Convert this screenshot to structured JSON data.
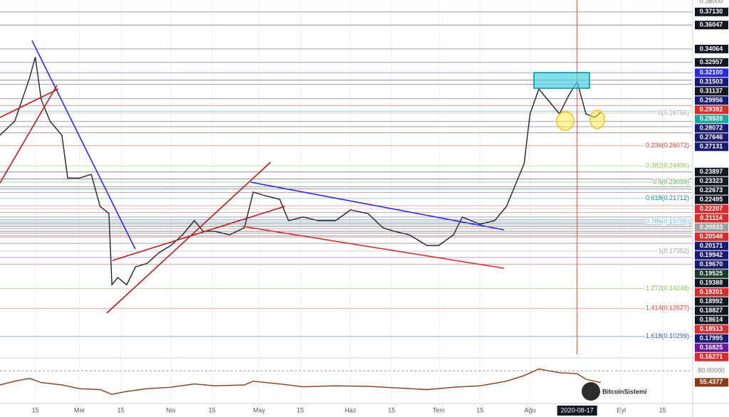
{
  "chart_data": [
    {
      "type": "line",
      "x": [
        "2020-02-03",
        "2020-02-08",
        "2020-02-13",
        "2020-02-15",
        "2020-02-17",
        "2020-02-20",
        "2020-02-24",
        "2020-02-26",
        "2020-03-01",
        "2020-03-05",
        "2020-03-08",
        "2020-03-11",
        "2020-03-12",
        "2020-03-14",
        "2020-03-17",
        "2020-03-20",
        "2020-03-24",
        "2020-03-28",
        "2020-04-01",
        "2020-04-05",
        "2020-04-09",
        "2020-04-12",
        "2020-04-16",
        "2020-04-21",
        "2020-04-26",
        "2020-04-29",
        "2020-05-03",
        "2020-05-08",
        "2020-05-11",
        "2020-05-16",
        "2020-05-21",
        "2020-05-27",
        "2020-06-01",
        "2020-06-07",
        "2020-06-12",
        "2020-06-16",
        "2020-06-21",
        "2020-06-27",
        "2020-07-01",
        "2020-07-06",
        "2020-07-09",
        "2020-07-15",
        "2020-07-20",
        "2020-07-24",
        "2020-07-27",
        "2020-07-30",
        "2020-08-01",
        "2020-08-04",
        "2020-08-07",
        "2020-08-11",
        "2020-08-14",
        "2020-08-17",
        "2020-08-20",
        "2020-08-23",
        "2020-08-25"
      ],
      "series": [
        {
          "color": "#222222",
          "values": [
            0.2694,
            0.281,
            0.3164,
            0.334,
            0.2988,
            0.281,
            0.2694,
            0.234,
            0.234,
            0.237,
            0.2105,
            0.2046,
            0.1458,
            0.1517,
            0.1458,
            0.1605,
            0.1635,
            0.1723,
            0.1782,
            0.187,
            0.1988,
            0.1899,
            0.1899,
            0.187,
            0.1929,
            0.2223,
            0.2194,
            0.2164,
            0.1988,
            0.2017,
            0.1988,
            0.1988,
            0.2076,
            0.2046,
            0.1929,
            0.1899,
            0.187,
            0.1782,
            0.1782,
            0.187,
            0.2017,
            0.1958,
            0.1988,
            0.2105,
            0.2282,
            0.2458,
            0.287,
            0.3076,
            0.2988,
            0.287,
            0.3017,
            0.3135,
            0.287,
            0.2841,
            0.2882
          ]
        }
      ],
      "xlim": [
        "2020-02-03",
        "2020-09-25"
      ],
      "xticks": [
        {
          "value": "2020-02-15",
          "label": "15"
        },
        {
          "value": "2020-03-01",
          "label": "Mar"
        },
        {
          "value": "2020-03-15",
          "label": "15"
        },
        {
          "value": "2020-04-01",
          "label": "Nis"
        },
        {
          "value": "2020-04-15",
          "label": "15"
        },
        {
          "value": "2020-05-01",
          "label": "May"
        },
        {
          "value": "2020-05-15",
          "label": "15"
        },
        {
          "value": "2020-06-01",
          "label": "Haz"
        },
        {
          "value": "2020-06-15",
          "label": "15"
        },
        {
          "value": "2020-07-01",
          "label": "Tem"
        },
        {
          "value": "2020-07-15",
          "label": "15"
        },
        {
          "value": "2020-08-01",
          "label": "Ağu"
        },
        {
          "value": "2020-09-01",
          "label": "Eyl"
        },
        {
          "value": "2020-09-15",
          "label": "15"
        }
      ],
      "crosshair": "2020-08-17",
      "ylim": [
        0.087,
        0.38
      ],
      "yticks": [
        {
          "value": 0.38,
          "label": "0.38000"
        },
        {
          "value": 0.3713,
          "label": "0.37130"
        },
        0.36047,
        0.34064,
        0.32957,
        {
          "value": 0.321,
          "label": "0.32100"
        },
        0.31503,
        0.31137,
        0.29956,
        0.29392,
        0.28928,
        0.28072,
        0.27646,
        0.27131,
        0.23897,
        0.23323,
        0.22673,
        0.22495,
        0.22207,
        0.21114,
        0.20833,
        0.20548,
        0.20171,
        0.19942,
        {
          "value": 0.1967,
          "label": "0.19670"
        },
        0.19525,
        0.19388,
        0.19201,
        0.18992,
        0.18827,
        0.18614,
        0.18513,
        0.17995,
        0.16825,
        0.16271
      ],
      "ytick_colors": [
        "#ffffff",
        "#131722",
        "#131722",
        "#131722",
        "#131722",
        "#2a2ae0",
        "#1a1a6e",
        "#131722",
        "#1a1a6e",
        "#d32f2f",
        "#26a69a",
        "#1a1a6e",
        "#1a1a6e",
        "#1a1a6e",
        "#131722",
        "#131722",
        "#131722",
        "#131722",
        "#d32f2f",
        "#d32f2f",
        "#9e9e9e",
        "#d32f2f",
        "#1a1a6e",
        "#1a1a6e",
        "#1a1a6e",
        "#1b3a2a",
        "#131722",
        "#d32f2f",
        "#131722",
        "#131722",
        "#131722",
        "#d32f2f",
        "#1a1a6e",
        "#6a1b9a",
        "#d32f2f"
      ],
      "grid": true,
      "fib_levels": [
        {
          "label": "0(0.28766)",
          "value": 0.28766,
          "color": "#9e9e9e"
        },
        {
          "label": "0.236(0.26072)",
          "value": 0.26072,
          "color": "#e53935"
        },
        {
          "label": "0.382(0.24406)",
          "value": 0.24406,
          "color": "#8bc34a"
        },
        {
          "label": "0.5(0.23059)",
          "value": 0.23059,
          "color": "#4caf50"
        },
        {
          "label": "0.618(0.21712)",
          "value": 0.21712,
          "color": "#009688"
        },
        {
          "label": "0.786(0.19795)",
          "value": 0.19795,
          "color": "#64b5f6"
        },
        {
          "label": "1(0.17352)",
          "value": 0.17352,
          "color": "#9e9e9e"
        },
        {
          "label": "1.272(0.14248)",
          "value": 0.14248,
          "color": "#8bc34a"
        },
        {
          "label": "1.414(0.12627)",
          "value": 0.12627,
          "color": "#e53935"
        },
        {
          "label": "1.618(0.10299)",
          "value": 0.10299,
          "color": "#3f51b5"
        }
      ]
    },
    {
      "type": "line",
      "x": [
        "2020-02-03",
        "2020-02-08",
        "2020-02-13",
        "2020-02-17",
        "2020-02-24",
        "2020-03-01",
        "2020-03-08",
        "2020-03-12",
        "2020-03-17",
        "2020-03-24",
        "2020-04-01",
        "2020-04-09",
        "2020-04-16",
        "2020-04-26",
        "2020-04-29",
        "2020-05-08",
        "2020-05-16",
        "2020-05-27",
        "2020-06-07",
        "2020-06-16",
        "2020-06-27",
        "2020-07-06",
        "2020-07-15",
        "2020-07-24",
        "2020-07-30",
        "2020-08-04",
        "2020-08-11",
        "2020-08-17",
        "2020-08-20",
        "2020-08-25"
      ],
      "series": [
        {
          "color": "#8b3a1a",
          "values": [
            50,
            58,
            64,
            55,
            50,
            42,
            40,
            30,
            36,
            42,
            45,
            52,
            48,
            50,
            58,
            52,
            46,
            48,
            47,
            44,
            40,
            45,
            48,
            58,
            70,
            84,
            76,
            74,
            62,
            55
          ]
        }
      ],
      "ylim": [
        18,
        100
      ],
      "yticks": [
        {
          "value": 80,
          "label": "80.00000"
        }
      ],
      "last_value": 55.4377,
      "watermark": "BitcoinSistemi"
    }
  ]
}
